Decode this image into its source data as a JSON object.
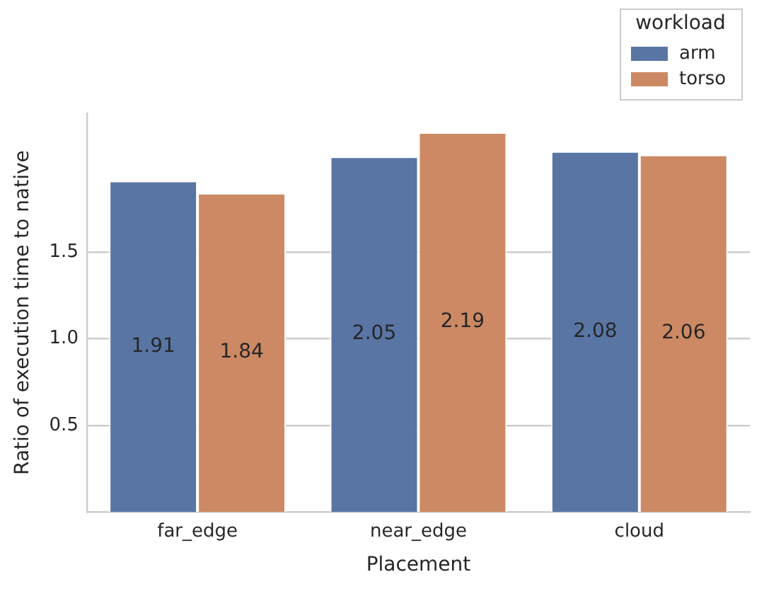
{
  "chart_data": {
    "type": "bar",
    "xlabel": "Placement",
    "ylabel": "Ratio of execution time to native",
    "legend_title": "workload",
    "categories": [
      "far_edge",
      "near_edge",
      "cloud"
    ],
    "series": [
      {
        "name": "arm",
        "color": "#5875a4",
        "values": [
          1.91,
          2.05,
          2.08
        ]
      },
      {
        "name": "torso",
        "color": "#cc8963",
        "values": [
          1.84,
          2.19,
          2.06
        ]
      }
    ],
    "ylim": [
      0,
      2.3
    ],
    "yticks": [
      0.5,
      {
        "value": 1,
        "label": "1.0"
      },
      1.5
    ],
    "grid": "y",
    "legend": "top right",
    "data_labels": true
  }
}
